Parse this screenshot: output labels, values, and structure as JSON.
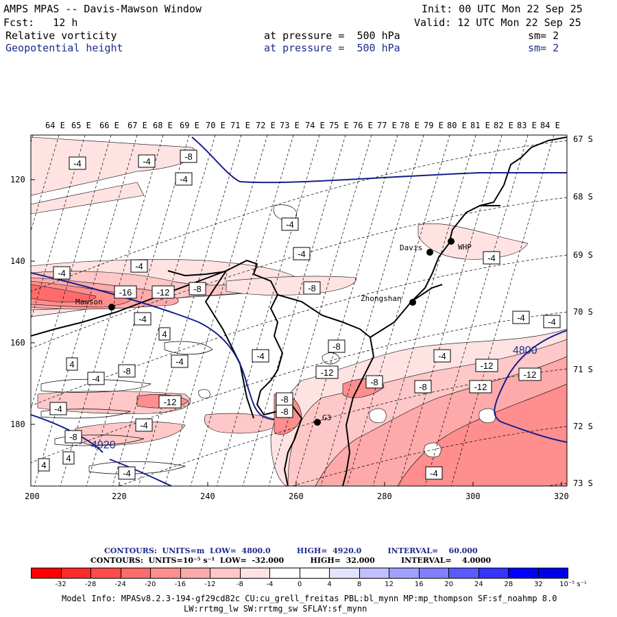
{
  "header": {
    "title": "AMPS MPAS -- Davis-Mawson Window",
    "fcst": "Fcst:   12 h",
    "init": "Init: 00 UTC Mon 22 Sep 25",
    "valid": "Valid: 12 UTC Mon 22 Sep 25",
    "field1": {
      "name": "Relative vorticity",
      "level": "at pressure =  500 hPa",
      "sm": "sm= 2"
    },
    "field2": {
      "name": "Geopotential height",
      "level": "at pressure =  500 hPa",
      "sm": "sm= 2"
    }
  },
  "map": {
    "lon_labels": [
      "64 E",
      "65 E",
      "66 E",
      "67 E",
      "68 E",
      "69 E",
      "70 E",
      "71 E",
      "72 E",
      "73 E",
      "74 E",
      "75 E",
      "76 E",
      "77 E",
      "78 E",
      "79 E",
      "80 E",
      "81 E",
      "82 E",
      "83 E",
      "84 E"
    ],
    "lat_labels": [
      "67 S",
      "68 S",
      "69 S",
      "70 S",
      "71 S",
      "72 S",
      "73 S"
    ],
    "x_ticks": [
      "200",
      "220",
      "240",
      "260",
      "280",
      "300",
      "320"
    ],
    "y_ticks": [
      "120",
      "140",
      "160",
      "180"
    ],
    "stations": [
      "Mawson",
      "Davis",
      "WHP",
      "Zhongshan",
      "G3"
    ],
    "contour_labels": [
      "-4",
      "-4",
      "-8",
      "-4",
      "-4",
      "-4",
      "-4",
      "-4",
      "-16",
      "-12",
      "-8",
      "-8",
      "-4",
      "-4",
      "-4",
      "4",
      "-8",
      "-4",
      "4",
      "-4",
      "-4",
      "-8",
      "-12",
      "-4",
      "-8",
      "-12",
      "-8",
      "-12",
      "-8",
      "-12",
      "-12",
      "-4",
      "-4",
      "-8",
      "4",
      "-4",
      "4",
      "-4",
      "-4",
      "-8"
    ],
    "height_labels": [
      "4800",
      "4920"
    ]
  },
  "footer": {
    "line1": "CONTOURS:  UNITS=m  LOW=  4800.0          HIGH=  4920.0          INTERVAL=    60.000",
    "line2": "CONTOURS:  UNITS=10⁻⁵ s⁻¹  LOW=  -32.000          HIGH=  32.000          INTERVAL=    4.0000",
    "colorbar_ticks": [
      "-32",
      "-28",
      "-24",
      "-20",
      "-16",
      "-12",
      "-8",
      "-4",
      "0",
      "4",
      "8",
      "12",
      "16",
      "20",
      "24",
      "28",
      "32"
    ],
    "colorbar_unit": "10⁻⁵ s⁻¹",
    "colorbar_colors": [
      "#ff0000",
      "#ff2a2a",
      "#ff4b4b",
      "#ff6b6b",
      "#ff8e8e",
      "#ffaaaa",
      "#ffc8c8",
      "#ffe3e3",
      "#ffffff",
      "#ffffff",
      "#e3e3ff",
      "#c0c0ff",
      "#a0a0ff",
      "#8080ff",
      "#5a5aff",
      "#3535ff",
      "#0000ff",
      "#0000e8"
    ],
    "model_info1": "Model Info: MPASv8.2.3-194-gf29cd82c CU:cu_grell_freitas PBL:bl_mynn MP:mp_thompson SF:sf_noahmp 8.0",
    "model_info2": "LW:rrtmg_lw SW:rrtmg_sw SFLAY:sf_mynn"
  }
}
